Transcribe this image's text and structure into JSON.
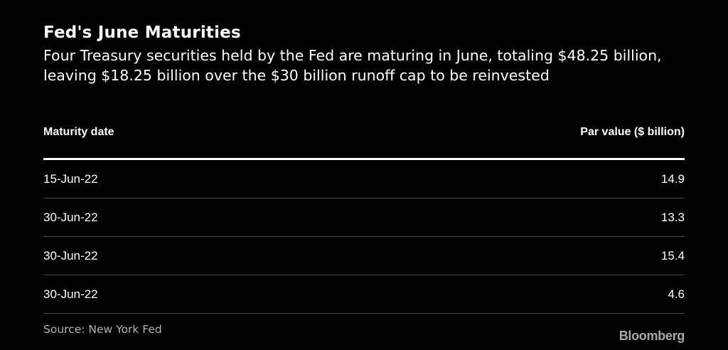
{
  "chart_data": {
    "type": "table",
    "title": "Fed's June Maturities",
    "subtitle": "Four Treasury securities held by the Fed are maturing in June, totaling $48.25 billion, leaving $18.25 billion over the $30 billion runoff cap to be reinvested",
    "columns": [
      "Maturity date",
      "Par value ($ billion)"
    ],
    "rows": [
      [
        "15-Jun-22",
        "14.9"
      ],
      [
        "30-Jun-22",
        "13.3"
      ],
      [
        "30-Jun-22",
        "15.4"
      ],
      [
        "30-Jun-22",
        "4.6"
      ]
    ],
    "source": "Source: New York Fed",
    "brand": "Bloomberg"
  },
  "colors": {
    "background": "#000000",
    "text": "#ffffff",
    "muted": "#b3b3b3",
    "row_divider": "#4a4a4a"
  }
}
